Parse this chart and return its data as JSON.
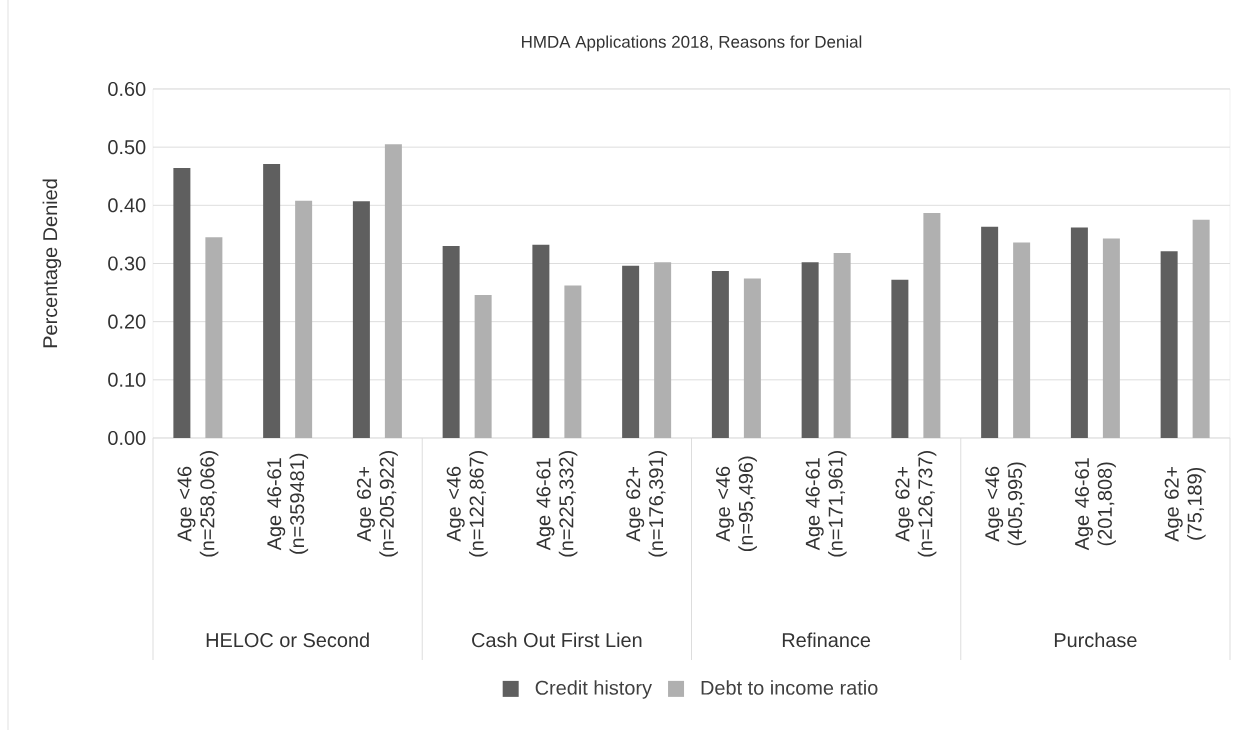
{
  "chart_data": {
    "type": "bar",
    "title": "HMDA Applications 2018, Reasons for Denial",
    "ylabel": "Percentage Denied",
    "categories": [
      "Age <46 (n=258,066)",
      "Age 46-61 (n=359481)",
      "Age 62+ (n=205,922)",
      "Age <46 (n=122,867)",
      "Age 46-61 (n=225,332)",
      "Age 62+ (n=176,391)",
      "Age <46 (n=95,496)",
      "Age 46-61 (n=171,961)",
      "Age 62+ (n=126,737)",
      "Age <46 (405,995)",
      "Age 46-61 (201,808)",
      "Age 62+ (75,189)"
    ],
    "series": [
      {
        "name": "Credit history",
        "color": "#5f5f5f",
        "values": [
          0.464,
          0.471,
          0.407,
          0.33,
          0.332,
          0.296,
          0.287,
          0.302,
          0.272,
          0.363,
          0.362,
          0.321
        ]
      },
      {
        "name": "Debt to income ratio",
        "color": "#b0b0b0",
        "values": [
          0.345,
          0.408,
          0.505,
          0.246,
          0.262,
          0.302,
          0.274,
          0.318,
          0.387,
          0.336,
          0.343,
          0.375
        ]
      }
    ],
    "annotations": [
      "HELOC or Second",
      "Cash Out First Lien",
      "Refinance",
      "Purchase"
    ],
    "ylim": [
      0,
      0.6
    ],
    "yticks": [
      {
        "value": 0,
        "label": "0.00"
      },
      {
        "value": 0.1,
        "label": "0.10"
      },
      {
        "value": 0.2,
        "label": "0.20"
      },
      {
        "value": 0.3,
        "label": "0.30"
      },
      {
        "value": 0.4,
        "label": "0.40"
      },
      {
        "value": 0.5,
        "label": "0.50"
      },
      {
        "value": 0.6,
        "label": "0.60"
      }
    ],
    "grid": "y",
    "legend": "bottom"
  }
}
